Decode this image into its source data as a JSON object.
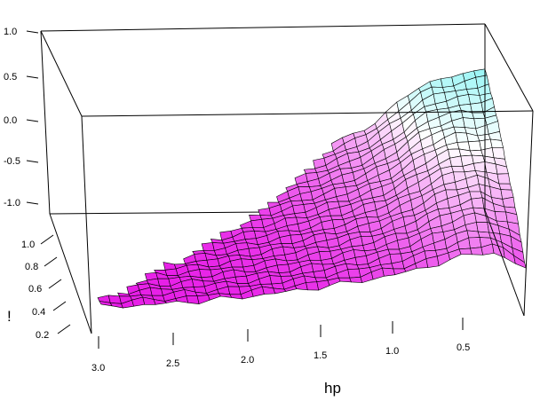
{
  "chart_data": {
    "type": "surface",
    "xlabel": "hp",
    "ylabel": "!",
    "zlabel": "",
    "x_ticks": [
      "3.0",
      "2.5",
      "2.0",
      "1.5",
      "1.0",
      "0.5"
    ],
    "y_ticks": [
      "0.2",
      "0.4",
      "0.6",
      "0.8",
      "1.0"
    ],
    "z_ticks": [
      "-1.0",
      "-0.5",
      "0.0",
      "0.5",
      "1.0"
    ],
    "x_range": [
      0.25,
      3.1
    ],
    "y_range": [
      0.15,
      1.1
    ],
    "z_range": [
      -1.25,
      1.25
    ],
    "mesh_columns": 40,
    "mesh_rows": 24,
    "colors": {
      "low": "#e400e4",
      "mid": "#ffffff",
      "high": "#22eaea",
      "edge": "#000000"
    }
  }
}
